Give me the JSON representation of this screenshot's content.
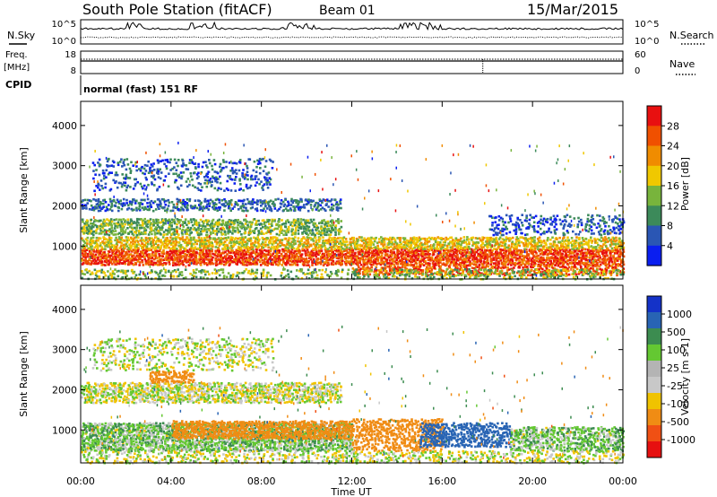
{
  "header": {
    "station": "South Pole Station (fitACF)",
    "beam": "Beam 01",
    "date": "15/Mar/2015"
  },
  "top_panels": {
    "nsky_label": "N.Sky",
    "nsky_ticks": [
      "10^5",
      "10^0"
    ],
    "nsearch_label": "N.Search",
    "nsearch_ticks": [
      "10^5",
      "10^0"
    ],
    "freq_label": "Freq.",
    "freq_unit": "[MHz]",
    "freq_ticks": [
      "18",
      "8"
    ],
    "nave_label": "Nave",
    "nave_ticks": [
      "60",
      "0"
    ],
    "cpid_label": "CPID",
    "cpid_value": "normal (fast) 151 RF"
  },
  "x_axis": {
    "title": "Time UT",
    "ticks": [
      "00:00",
      "04:00",
      "08:00",
      "12:00",
      "16:00",
      "20:00",
      "00:00"
    ]
  },
  "colors": {
    "power": [
      "#0a1ef0",
      "#2a56b4",
      "#3c8a5a",
      "#78b43c",
      "#f0c800",
      "#f08c00",
      "#f05000",
      "#e81010"
    ],
    "velocity": [
      "#e61010",
      "#f05014",
      "#f08c14",
      "#f0c300",
      "#c8c8c8",
      "#b4b4b4",
      "#64c832",
      "#3c8c50",
      "#2864b4",
      "#1432c8"
    ],
    "ground_scatter": "#b4b4b4"
  },
  "chart_data": [
    {
      "type": "heatmap",
      "title": "",
      "xlabel": "Time UT",
      "ylabel": "Slant Range [km]",
      "xlim": [
        "00:00",
        "24:00"
      ],
      "ylim": [
        180,
        4600
      ],
      "y_ticks": [
        1000,
        2000,
        3000,
        4000
      ],
      "colorbar": {
        "label": "Power [dB]",
        "ticks": [
          "28",
          "24",
          "20",
          "16",
          "12",
          "8",
          "4"
        ],
        "range": [
          0,
          32
        ]
      },
      "bands": [
        {
          "start_h": 0.0,
          "end_h": 24.0,
          "range_low_km": 550,
          "range_high_km": 950,
          "value_db": 27,
          "density": 0.95
        },
        {
          "start_h": 0.0,
          "end_h": 24.0,
          "range_low_km": 950,
          "range_high_km": 1250,
          "value_db": 18,
          "density": 0.8
        },
        {
          "start_h": 0.0,
          "end_h": 11.5,
          "range_low_km": 1300,
          "range_high_km": 1700,
          "value_db": 13,
          "density": 0.7
        },
        {
          "start_h": 0.0,
          "end_h": 11.5,
          "range_low_km": 1900,
          "range_high_km": 2200,
          "value_db": 7,
          "density": 0.55
        },
        {
          "start_h": 0.5,
          "end_h": 8.5,
          "range_low_km": 2400,
          "range_high_km": 3200,
          "value_db": 6,
          "density": 0.25
        },
        {
          "start_h": 12.0,
          "end_h": 24.0,
          "range_low_km": 300,
          "range_high_km": 550,
          "value_db": 26,
          "density": 0.6
        },
        {
          "start_h": 0.0,
          "end_h": 24.0,
          "range_low_km": 200,
          "range_high_km": 450,
          "value_db": 14,
          "density": 0.35
        },
        {
          "start_h": 18.0,
          "end_h": 24.0,
          "range_low_km": 1300,
          "range_high_km": 1800,
          "value_db": 6,
          "density": 0.35
        }
      ]
    },
    {
      "type": "heatmap",
      "title": "",
      "xlabel": "Time UT",
      "ylabel": "Slant Range [km]",
      "xlim": [
        "00:00",
        "24:00"
      ],
      "ylim": [
        180,
        4600
      ],
      "y_ticks": [
        1000,
        2000,
        3000,
        4000
      ],
      "colorbar": {
        "label": "Velocity [m s-1]",
        "ticks": [
          "1000",
          "500",
          "100",
          "25",
          "-25",
          "-100",
          "-500",
          "-1000"
        ],
        "range": [
          -1000,
          1000
        ]
      },
      "bands": [
        {
          "start_h": 0.0,
          "end_h": 12.0,
          "range_low_km": 500,
          "range_high_km": 1200,
          "value_ms": 60,
          "density": 0.9
        },
        {
          "start_h": 4.0,
          "end_h": 12.0,
          "range_low_km": 800,
          "range_high_km": 1250,
          "value_ms": -300,
          "density": 0.8
        },
        {
          "start_h": 0.0,
          "end_h": 11.5,
          "range_low_km": 1700,
          "range_high_km": 2200,
          "value_ms": 0,
          "density": 0.75
        },
        {
          "start_h": 3.0,
          "end_h": 5.0,
          "range_low_km": 2200,
          "range_high_km": 2500,
          "value_ms": -300,
          "density": 0.7
        },
        {
          "start_h": 12.0,
          "end_h": 16.0,
          "range_low_km": 500,
          "range_high_km": 1300,
          "value_ms": -300,
          "density": 0.6
        },
        {
          "start_h": 15.0,
          "end_h": 19.0,
          "range_low_km": 600,
          "range_high_km": 1200,
          "value_ms": 800,
          "density": 0.7
        },
        {
          "start_h": 19.0,
          "end_h": 24.0,
          "range_low_km": 500,
          "range_high_km": 1100,
          "value_ms": 60,
          "density": 0.75
        },
        {
          "start_h": 0.0,
          "end_h": 24.0,
          "range_low_km": 200,
          "range_high_km": 500,
          "value_ms": 0,
          "density": 0.4
        },
        {
          "start_h": 0.5,
          "end_h": 8.5,
          "range_low_km": 2500,
          "range_high_km": 3300,
          "value_ms": 0,
          "density": 0.3
        }
      ]
    }
  ]
}
